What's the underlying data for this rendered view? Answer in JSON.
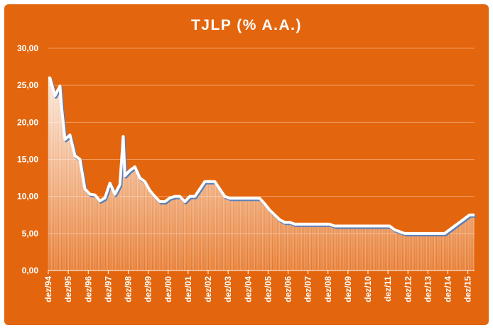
{
  "chart_data": {
    "type": "area",
    "title": "TJLP (% A.A.)",
    "xlabel": "",
    "ylabel": "",
    "ylim": [
      0,
      30
    ],
    "y_ticks": [
      "0,00",
      "5,00",
      "10,00",
      "15,00",
      "20,00",
      "25,00",
      "30,00"
    ],
    "y_tick_values": [
      0,
      5,
      10,
      15,
      20,
      25,
      30
    ],
    "categories": [
      "dez/94",
      "dez/95",
      "dez/96",
      "dez/97",
      "dez/98",
      "dez/99",
      "dez/00",
      "dez/01",
      "dez/02",
      "dez/03",
      "dez/04",
      "dez/05",
      "dez/06",
      "dez/07",
      "dez/08",
      "dez/09",
      "dez/10",
      "dez/11",
      "dez/12",
      "dez/13",
      "dez/14",
      "dez/15"
    ],
    "grid": true,
    "legend": "none",
    "colors": {
      "background": "#e3660e",
      "line": "#ffffff",
      "line_shadow": "#5b7fb8",
      "fill": "#ffffff",
      "grid": "#f19a60"
    },
    "series": [
      {
        "values": [
          [
            1994.917,
            26.0
          ],
          [
            1995.0,
            26.0
          ],
          [
            1995.25,
            23.6
          ],
          [
            1995.5,
            24.9
          ],
          [
            1995.583,
            22.0
          ],
          [
            1995.75,
            17.7
          ],
          [
            1996.0,
            18.3
          ],
          [
            1996.25,
            15.5
          ],
          [
            1996.5,
            15.0
          ],
          [
            1996.75,
            11.0
          ],
          [
            1997.0,
            10.3
          ],
          [
            1997.25,
            10.2
          ],
          [
            1997.5,
            9.4
          ],
          [
            1997.75,
            9.8
          ],
          [
            1998.0,
            11.8
          ],
          [
            1998.25,
            10.3
          ],
          [
            1998.5,
            11.6
          ],
          [
            1998.667,
            18.1
          ],
          [
            1998.75,
            12.8
          ],
          [
            1999.0,
            13.5
          ],
          [
            1999.25,
            14.0
          ],
          [
            1999.5,
            12.5
          ],
          [
            1999.75,
            12.0
          ],
          [
            2000.0,
            10.8
          ],
          [
            2000.25,
            10.0
          ],
          [
            2000.5,
            9.3
          ],
          [
            2000.75,
            9.3
          ],
          [
            2001.0,
            9.8
          ],
          [
            2001.25,
            10.0
          ],
          [
            2001.5,
            10.0
          ],
          [
            2001.75,
            9.3
          ],
          [
            2002.0,
            10.0
          ],
          [
            2002.25,
            10.0
          ],
          [
            2002.5,
            11.0
          ],
          [
            2002.75,
            12.0
          ],
          [
            2003.0,
            12.0
          ],
          [
            2003.25,
            12.0
          ],
          [
            2003.5,
            11.0
          ],
          [
            2003.75,
            10.0
          ],
          [
            2004.0,
            9.75
          ],
          [
            2004.5,
            9.75
          ],
          [
            2005.0,
            9.75
          ],
          [
            2005.5,
            9.75
          ],
          [
            2005.75,
            9.0
          ],
          [
            2006.0,
            8.15
          ],
          [
            2006.25,
            7.5
          ],
          [
            2006.5,
            6.85
          ],
          [
            2006.75,
            6.5
          ],
          [
            2007.0,
            6.5
          ],
          [
            2007.25,
            6.25
          ],
          [
            2008.0,
            6.25
          ],
          [
            2009.0,
            6.25
          ],
          [
            2009.25,
            6.0
          ],
          [
            2010.0,
            6.0
          ],
          [
            2011.0,
            6.0
          ],
          [
            2012.0,
            6.0
          ],
          [
            2012.25,
            5.5
          ],
          [
            2012.75,
            5.0
          ],
          [
            2013.5,
            5.0
          ],
          [
            2014.0,
            5.0
          ],
          [
            2014.75,
            5.0
          ],
          [
            2015.0,
            5.5
          ],
          [
            2015.25,
            6.0
          ],
          [
            2015.5,
            6.5
          ],
          [
            2015.75,
            7.0
          ],
          [
            2016.0,
            7.5
          ],
          [
            2016.25,
            7.5
          ]
        ]
      }
    ]
  }
}
